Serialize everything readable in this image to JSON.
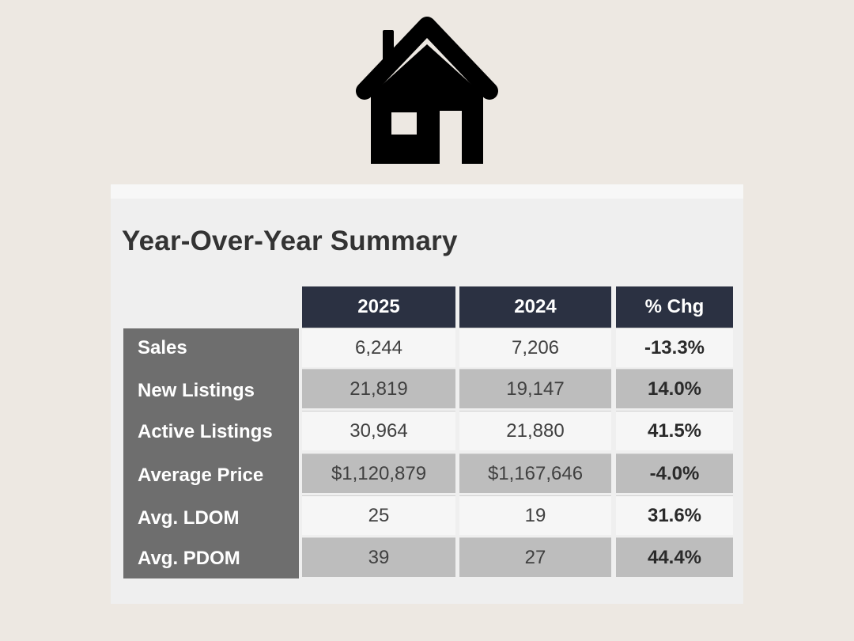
{
  "table": {
    "title": "Year-Over-Year Summary",
    "headers": [
      "2025",
      "2024",
      "% Chg"
    ],
    "rows": [
      {
        "label": "Sales",
        "y2025": "6,244",
        "y2024": "7,206",
        "chg": "-13.3%"
      },
      {
        "label": "New Listings",
        "y2025": "21,819",
        "y2024": "19,147",
        "chg": "14.0%"
      },
      {
        "label": "Active Listings",
        "y2025": "30,964",
        "y2024": "21,880",
        "chg": "41.5%"
      },
      {
        "label": "Average Price",
        "y2025": "$1,120,879",
        "y2024": "$1,167,646",
        "chg": "-4.0%"
      },
      {
        "label": "Avg. LDOM",
        "y2025": "25",
        "y2024": "19",
        "chg": "31.6%"
      },
      {
        "label": "Avg. PDOM",
        "y2025": "39",
        "y2024": "27",
        "chg": "44.4%"
      }
    ]
  },
  "icons": {
    "header_icon": "house-icon"
  },
  "colors": {
    "background": "#ede8e2",
    "header_fill": "#2b3142",
    "label_column": "#6e6e6e",
    "shaded_row": "#bdbdbd"
  }
}
